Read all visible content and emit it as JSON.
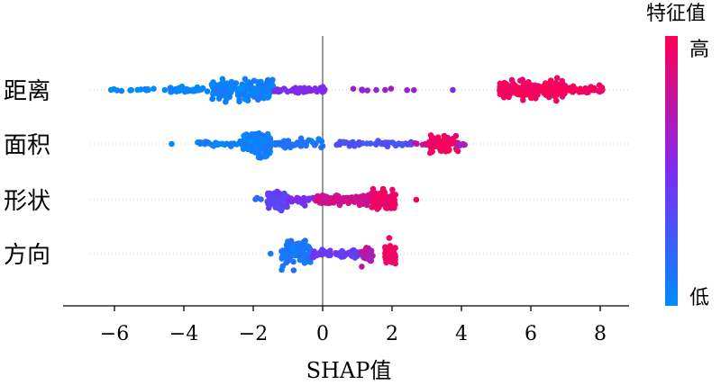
{
  "chart_data": {
    "type": "scatter",
    "subtype": "shap-beeswarm",
    "title": "",
    "xlabel": "SHAP值",
    "ylabel": "",
    "xlim": [
      -7.2,
      8.6
    ],
    "xticks": [
      -6,
      -4,
      -2,
      0,
      2,
      4,
      6,
      8
    ],
    "xtick_labels": [
      "−6",
      "−4",
      "−2",
      "0",
      "2",
      "4",
      "6",
      "8"
    ],
    "grid": false,
    "colorbar": {
      "title": "特征值",
      "high_label": "高",
      "low_label": "低",
      "high_color": "#ff0052",
      "low_color": "#008bfb"
    },
    "features": [
      {
        "name": "距离",
        "clusters": [
          {
            "from": -6.3,
            "to": -4.5,
            "n": 14,
            "width": 0.06,
            "feat": 0.0
          },
          {
            "from": -4.5,
            "to": -3.2,
            "n": 30,
            "width": 0.12,
            "feat": 0.02
          },
          {
            "from": -3.2,
            "to": -1.4,
            "n": 180,
            "width": 0.38,
            "feat": 0.06
          },
          {
            "from": -1.4,
            "to": 0.1,
            "n": 40,
            "width": 0.12,
            "feat": 0.5
          },
          {
            "from": 0.5,
            "to": 2.7,
            "n": 10,
            "width": 0.05,
            "feat": 0.62
          },
          {
            "from": 3.6,
            "to": 3.9,
            "n": 1,
            "width": 0.0,
            "feat": 0.45
          },
          {
            "from": 5.1,
            "to": 7.0,
            "n": 190,
            "width": 0.38,
            "feat": 0.96
          },
          {
            "from": 7.0,
            "to": 8.2,
            "n": 40,
            "width": 0.14,
            "feat": 0.97
          }
        ]
      },
      {
        "name": "面积",
        "clusters": [
          {
            "from": -4.5,
            "to": -4.2,
            "n": 1,
            "width": 0.0,
            "feat": 0.0
          },
          {
            "from": -3.6,
            "to": -2.3,
            "n": 28,
            "width": 0.12,
            "feat": 0.04
          },
          {
            "from": -2.3,
            "to": -1.5,
            "n": 150,
            "width": 0.42,
            "feat": 0.06
          },
          {
            "from": -1.5,
            "to": 0.0,
            "n": 50,
            "width": 0.14,
            "feat": 0.1
          },
          {
            "from": 0.4,
            "to": 2.6,
            "n": 45,
            "width": 0.09,
            "feat": 0.3
          },
          {
            "from": 2.6,
            "to": 3.0,
            "n": 6,
            "width": 0.06,
            "feat": 0.75
          },
          {
            "from": 3.0,
            "to": 3.9,
            "n": 75,
            "width": 0.36,
            "feat": 0.95
          },
          {
            "from": 3.9,
            "to": 4.1,
            "n": 6,
            "width": 0.1,
            "feat": 0.65
          }
        ]
      },
      {
        "name": "形状",
        "clusters": [
          {
            "from": -2.0,
            "to": -1.6,
            "n": 3,
            "width": 0.05,
            "feat": 0.2
          },
          {
            "from": -1.6,
            "to": -1.0,
            "n": 70,
            "width": 0.4,
            "feat": 0.38
          },
          {
            "from": -1.0,
            "to": -0.2,
            "n": 25,
            "width": 0.14,
            "feat": 0.5
          },
          {
            "from": -0.2,
            "to": 1.4,
            "n": 110,
            "width": 0.18,
            "feat": 0.82
          },
          {
            "from": 1.4,
            "to": 2.1,
            "n": 75,
            "width": 0.42,
            "feat": 0.93
          },
          {
            "from": 2.6,
            "to": 2.8,
            "n": 1,
            "width": 0.0,
            "feat": 0.95
          }
        ]
      },
      {
        "name": "方向",
        "clusters": [
          {
            "from": -1.6,
            "to": -1.4,
            "n": 1,
            "width": 0.0,
            "feat": 0.05
          },
          {
            "from": -1.2,
            "to": -0.3,
            "n": 110,
            "width": 0.42,
            "feat": 0.1
          },
          {
            "from": -0.3,
            "to": 1.2,
            "n": 70,
            "width": 0.16,
            "feat": 0.42
          },
          {
            "from": 1.1,
            "to": 1.45,
            "n": 25,
            "width": 0.32,
            "feat": 0.72
          },
          {
            "from": 1.8,
            "to": 2.1,
            "n": 55,
            "width": 0.42,
            "feat": 0.93
          }
        ]
      }
    ]
  }
}
